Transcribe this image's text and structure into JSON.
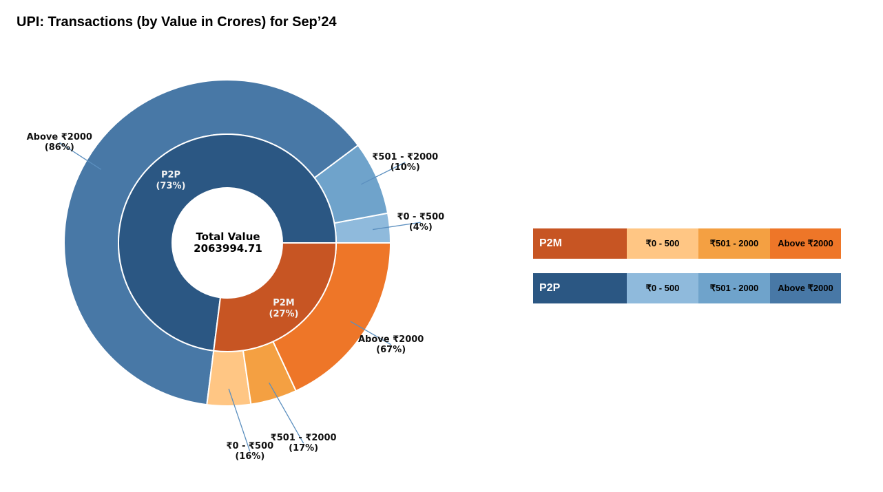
{
  "title": "UPI: Transactions (by Value in Crores) for Sep’24",
  "colors": {
    "p2p": "#2b5783",
    "p2p_0_500": "#8fbadc",
    "p2p_501_2000": "#6fa3cb",
    "p2p_above_2000": "#4878a6",
    "p2m": "#c75523",
    "p2m_0_500": "#ffc684",
    "p2m_501_2000": "#f4a042",
    "p2m_above_2000": "#ee7628"
  },
  "chart_data": {
    "type": "pie",
    "subtype": "nested-donut",
    "center_label": {
      "title": "Total Value",
      "value": "2063994.71"
    },
    "inner_ring": [
      {
        "name": "P2P",
        "percent": 73,
        "label": "P2P\n(73%)",
        "color_key": "p2p"
      },
      {
        "name": "P2M",
        "percent": 27,
        "label": "P2M\n(27%)",
        "color_key": "p2m"
      }
    ],
    "outer_ring": [
      {
        "parent": "P2P",
        "name": "₹0 - ₹500",
        "percent_of_parent": 4,
        "label": "₹0 - ₹500\n(4%)",
        "color_key": "p2p_0_500"
      },
      {
        "parent": "P2P",
        "name": "₹501 - ₹2000",
        "percent_of_parent": 10,
        "label": "₹501 - ₹2000\n(10%)",
        "color_key": "p2p_501_2000"
      },
      {
        "parent": "P2P",
        "name": "Above ₹2000",
        "percent_of_parent": 86,
        "label": "Above ₹2000\n(86%)",
        "color_key": "p2p_above_2000"
      },
      {
        "parent": "P2M",
        "name": "₹0 - ₹500",
        "percent_of_parent": 16,
        "label": "₹0 - ₹500\n(16%)",
        "color_key": "p2m_0_500"
      },
      {
        "parent": "P2M",
        "name": "₹501 - ₹2000",
        "percent_of_parent": 17,
        "label": "₹501 - ₹2000\n(17%)",
        "color_key": "p2m_501_2000"
      },
      {
        "parent": "P2M",
        "name": "Above ₹2000",
        "percent_of_parent": 67,
        "label": "Above ₹2000\n(67%)",
        "color_key": "p2m_above_2000"
      }
    ]
  },
  "legend": {
    "p2m": {
      "name": "P2M",
      "seg1": "₹0 - 500",
      "seg2": "₹501 - 2000",
      "seg3": "Above ₹2000"
    },
    "p2p": {
      "name": "P2P",
      "seg1": "₹0 - 500",
      "seg2": "₹501 - 2000",
      "seg3": "Above ₹2000"
    }
  }
}
